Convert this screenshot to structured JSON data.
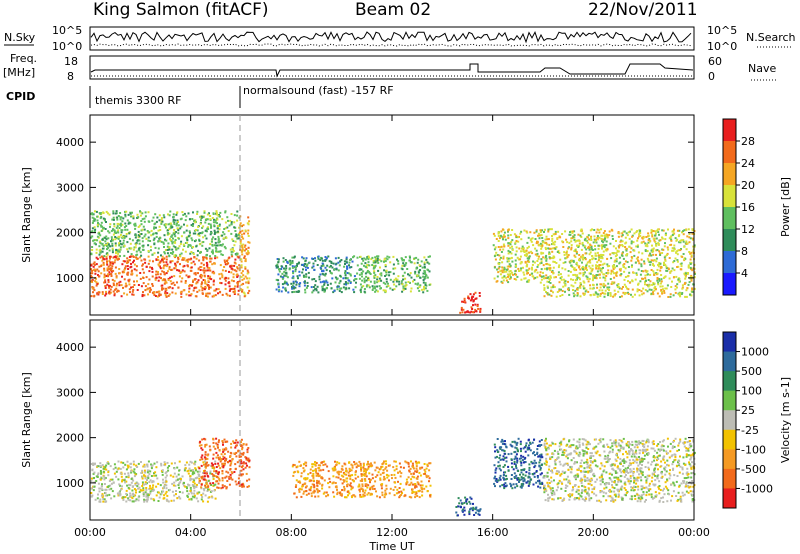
{
  "header": {
    "station": "King Salmon (fitACF)",
    "beam": "Beam 02",
    "date": "22/Nov/2011"
  },
  "top_panels": {
    "nsky_label": "N.Sky",
    "nsky_ticks": [
      "10^5",
      "10^0"
    ],
    "nsearch_label": "N.Search",
    "nsearch_ticks": [
      "10^5",
      "10^0"
    ],
    "freq_label": "Freq.",
    "freq_unit": "[MHz]",
    "freq_ticks": [
      "18",
      "8"
    ],
    "nave_label": "Nave",
    "nave_ticks": [
      "60",
      "0"
    ],
    "cpid_label": "CPID",
    "cpid_segments": [
      "themis 3300 RF",
      "normalsound (fast) -157 RF"
    ]
  },
  "chart_data": [
    {
      "type": "heatmap",
      "title": "",
      "xlabel": "",
      "ylabel": "Slant Range [km]",
      "x_ticks": [
        "00:00",
        "04:00",
        "08:00",
        "12:00",
        "16:00",
        "20:00",
        "00:00"
      ],
      "xlim": [
        0,
        24
      ],
      "y_ticks": [
        "1000",
        "2000",
        "3000",
        "4000"
      ],
      "ylim": [
        180,
        4600
      ],
      "colorbar": {
        "label": "Power [dB]",
        "ticks": [
          "4",
          "8",
          "12",
          "16",
          "20",
          "24",
          "28"
        ],
        "range": [
          0,
          32
        ],
        "colors": [
          "#1a1aff",
          "#2e6bd6",
          "#2f8c5a",
          "#5fbf5f",
          "#d8e23a",
          "#f5a623",
          "#f26a1b",
          "#e81e1e"
        ]
      },
      "scatter_regions": [
        {
          "t0": 0.0,
          "t1": 5.9,
          "r0": 600,
          "r1": 1500,
          "level": 24
        },
        {
          "t0": 0.0,
          "t1": 5.9,
          "r0": 1500,
          "r1": 2500,
          "level": 12
        },
        {
          "t0": 5.9,
          "t1": 6.3,
          "r0": 600,
          "r1": 2400,
          "level": 22
        },
        {
          "t0": 7.3,
          "t1": 10.5,
          "r0": 700,
          "r1": 1500,
          "level": 8
        },
        {
          "t0": 10.5,
          "t1": 13.5,
          "r0": 700,
          "r1": 1500,
          "level": 14
        },
        {
          "t0": 14.6,
          "t1": 15.5,
          "r0": 250,
          "r1": 700,
          "level": 28
        },
        {
          "t0": 16.0,
          "t1": 18.0,
          "r0": 900,
          "r1": 2100,
          "level": 18
        },
        {
          "t0": 18.0,
          "t1": 24.0,
          "r0": 600,
          "r1": 2100,
          "level": 16
        }
      ]
    },
    {
      "type": "heatmap",
      "title": "",
      "xlabel": "Time UT",
      "ylabel": "Slant Range [km]",
      "x_ticks": [
        "00:00",
        "04:00",
        "08:00",
        "12:00",
        "16:00",
        "20:00",
        "00:00"
      ],
      "xlim": [
        0,
        24
      ],
      "y_ticks": [
        "1000",
        "2000",
        "3000",
        "4000"
      ],
      "ylim": [
        180,
        4600
      ],
      "colorbar": {
        "label": "Velocity [m s-1]",
        "ticks": [
          "1000",
          "500",
          "100",
          "25",
          "-25",
          "-100",
          "-500",
          "-1000"
        ],
        "range": [
          -1000,
          1000
        ],
        "colors": [
          "#1a2ea8",
          "#2e6b9c",
          "#2f8c5a",
          "#6cc04a",
          "#bdbdb5",
          "#f2c200",
          "#f59a23",
          "#f26a1b",
          "#e81e1e"
        ]
      },
      "scatter_regions": [
        {
          "t0": 0.0,
          "t1": 5.0,
          "r0": 600,
          "r1": 1500,
          "value": 0
        },
        {
          "t0": 4.3,
          "t1": 6.3,
          "r0": 900,
          "r1": 2000,
          "value": -600
        },
        {
          "t0": 8.0,
          "t1": 13.5,
          "r0": 700,
          "r1": 1500,
          "value": -200
        },
        {
          "t0": 14.5,
          "t1": 15.5,
          "r0": 300,
          "r1": 700,
          "value": 200
        },
        {
          "t0": 16.0,
          "t1": 18.0,
          "r0": 900,
          "r1": 2000,
          "value": 300
        },
        {
          "t0": 18.0,
          "t1": 24.0,
          "r0": 600,
          "r1": 2000,
          "value": 0
        }
      ]
    }
  ]
}
